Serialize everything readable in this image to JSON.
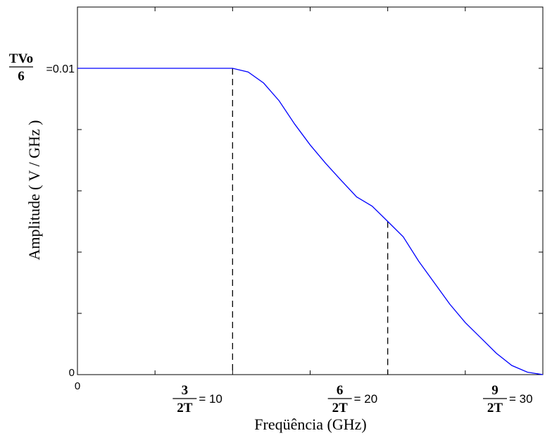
{
  "chart_data": {
    "type": "line",
    "xlabel": "Freqüência (GHz)",
    "ylabel": "Amplitude ( V / GHz )",
    "xlim": [
      0,
      30
    ],
    "ylim": [
      0,
      0.012
    ],
    "grid": false,
    "x_ticks_numeric": [
      0,
      5,
      10,
      15,
      20,
      25,
      30
    ],
    "y_ticks_numeric": [
      0,
      0.002,
      0.004,
      0.006,
      0.008,
      0.01,
      0.012
    ],
    "x_tick_labels": [
      {
        "x": 0,
        "value_text": "0"
      },
      {
        "x": 10,
        "frac_num": "3",
        "frac_den": "2T",
        "value_text": "= 10"
      },
      {
        "x": 20,
        "frac_num": "6",
        "frac_den": "2T",
        "value_text": "= 20"
      },
      {
        "x": 30,
        "frac_num": "9",
        "frac_den": "2T",
        "value_text": "= 30"
      }
    ],
    "y_tick_labels": [
      {
        "y": 0,
        "value_text": "0"
      },
      {
        "y": 0.01,
        "frac_num": "TVo",
        "frac_den": "6",
        "value_text": "=0.01"
      }
    ],
    "reference_lines": [
      {
        "x": 10,
        "y": 0.01
      },
      {
        "x": 20,
        "y": 0.005
      }
    ],
    "series": [
      {
        "color": "#0000ff",
        "x": [
          0,
          2,
          4,
          6,
          8,
          10,
          11,
          12,
          13,
          14,
          15,
          16,
          17,
          18,
          19,
          20,
          21,
          22,
          23,
          24,
          25,
          26,
          27,
          28,
          29,
          30
        ],
        "y": [
          0.01,
          0.01,
          0.01,
          0.01,
          0.01,
          0.01,
          0.00988,
          0.00952,
          0.00894,
          0.00818,
          0.0075,
          0.0069,
          0.00634,
          0.0058,
          0.0055,
          0.005,
          0.0045,
          0.0037,
          0.003,
          0.0023,
          0.0017,
          0.0012,
          0.0007,
          0.0003,
          8e-05,
          0.0
        ]
      }
    ]
  }
}
